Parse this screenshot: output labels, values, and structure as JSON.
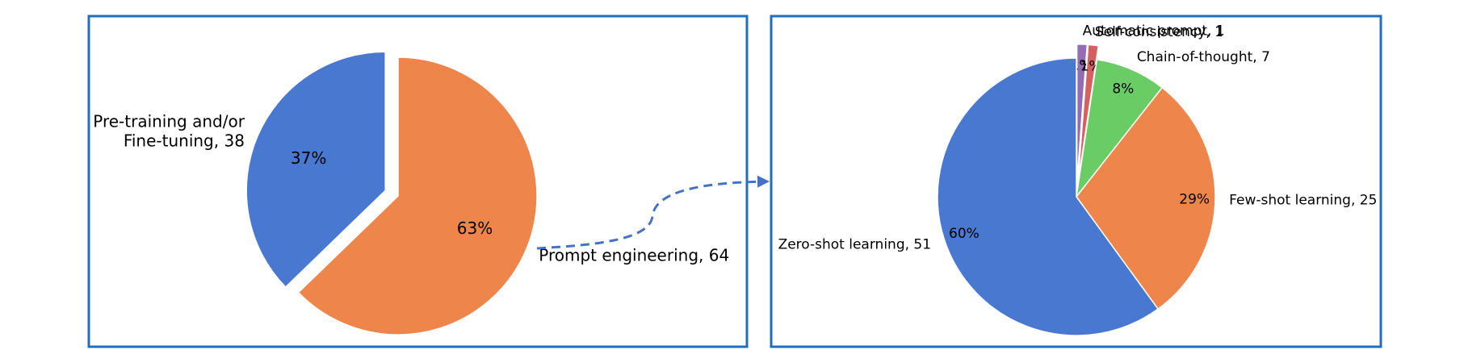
{
  "colors": {
    "frame": "#1f6fc0",
    "connector": "#4472c4"
  },
  "chart_data": [
    {
      "type": "pie",
      "slices": [
        {
          "label": "Pre-training and/or\nFine-tuning, 38",
          "value": 38,
          "pct": "37%",
          "color": "#4878d0",
          "exploded": true
        },
        {
          "label": "Prompt engineering, 64",
          "value": 64,
          "pct": "63%",
          "color": "#ee854a",
          "exploded": false
        }
      ]
    },
    {
      "type": "pie",
      "slices": [
        {
          "label": "Automatic prompt, 1",
          "value": 1,
          "pct": "1%",
          "color": "#956cb4",
          "exploded": true
        },
        {
          "label": "Self-consistency, 1",
          "value": 1,
          "pct": "1%",
          "color": "#d65f5f",
          "exploded": true
        },
        {
          "label": "Chain-of-thought, 7",
          "value": 7,
          "pct": "8%",
          "color": "#6acc64",
          "exploded": false
        },
        {
          "label": "Few-shot learning, 25",
          "value": 25,
          "pct": "29%",
          "color": "#ee854a",
          "exploded": false
        },
        {
          "label": "Zero-shot learning, 51",
          "value": 51,
          "pct": "60%",
          "color": "#4878d0",
          "exploded": false
        }
      ]
    }
  ]
}
